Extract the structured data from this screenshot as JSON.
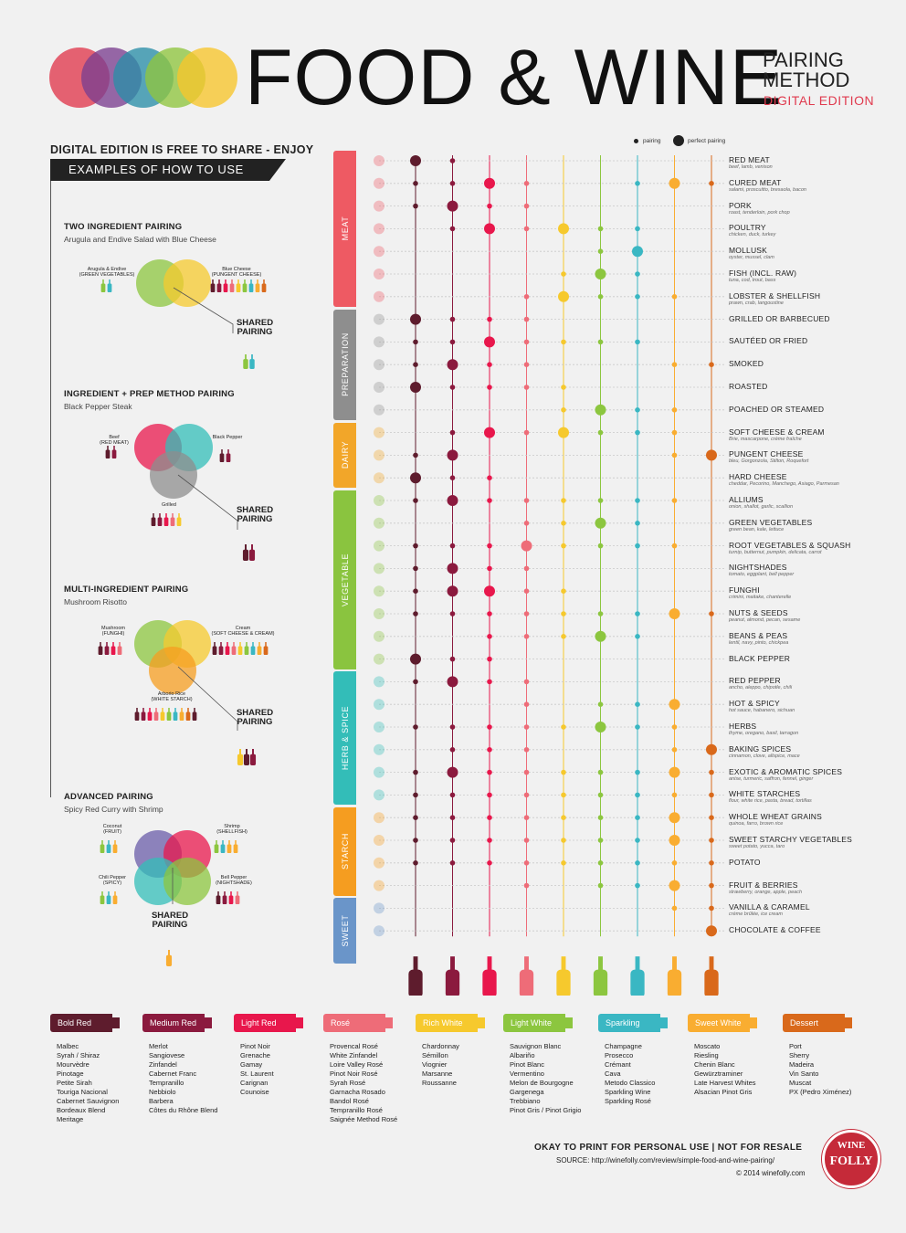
{
  "header": {
    "title": "FOOD & WINE",
    "subtitle_line1": "PAIRING",
    "subtitle_line2": "METHOD",
    "edition": "DIGITAL EDITION",
    "logo_colors": [
      "#e0394d",
      "#7b3f8f",
      "#2a8ea8",
      "#8fc53f",
      "#f7c52c"
    ]
  },
  "left_panel": {
    "free_note": "DIGITAL EDITION IS FREE TO SHARE - ENJOY",
    "examples_heading": "EXAMPLES OF HOW TO USE",
    "shared_line1": "SHARED",
    "shared_line2": "PAIRING",
    "examples": [
      {
        "title": "TWO INGREDIENT PAIRING",
        "subtitle": "Arugula and Endive Salad with Blue Cheese",
        "labels": [
          "Arugula & Endive",
          "(GREEN VEGETABLES)",
          "Blue Cheese",
          "(PUNGENT CHEESE)"
        ]
      },
      {
        "title": "INGREDIENT + PREP METHOD PAIRING",
        "subtitle": "Black Pepper Steak",
        "labels": [
          "Beef",
          "(RED MEAT)",
          "Black Pepper",
          "Grilled"
        ]
      },
      {
        "title": "MULTI-INGREDIENT PAIRING",
        "subtitle": "Mushroom Risotto",
        "labels": [
          "Mushroom",
          "(FUNGHI)",
          "Cream",
          "(SOFT CHEESE & CREAM)",
          "Arborio Rice",
          "(WHITE STARCH)"
        ]
      },
      {
        "title": "ADVANCED PAIRING",
        "subtitle": "Spicy Red Curry with Shrimp",
        "labels": [
          "Coconut",
          "(FRUIT)",
          "Shrimp",
          "(SHELLFISH)",
          "Chili Pepper",
          "(SPICY)",
          "Bell Pepper",
          "(NIGHTSHADE)"
        ]
      }
    ]
  },
  "legend": {
    "pairing": "pairing",
    "perfect": "perfect pairing"
  },
  "chart_data": {
    "type": "table",
    "title": "FOOD & WINE PAIRING METHOD",
    "encoding": "1 = pairing (small dot), 2 = perfect pairing (large dot), 0 = none",
    "wine_columns": [
      {
        "name": "Bold Red",
        "color": "#5e1c2d"
      },
      {
        "name": "Medium Red",
        "color": "#8b1a3e"
      },
      {
        "name": "Light Red",
        "color": "#e8174c"
      },
      {
        "name": "Rosé",
        "color": "#ee6c78"
      },
      {
        "name": "Rich White",
        "color": "#f6c92d"
      },
      {
        "name": "Light White",
        "color": "#8cc63f"
      },
      {
        "name": "Sparkling",
        "color": "#3ab7c3"
      },
      {
        "name": "Sweet White",
        "color": "#f9ad31"
      },
      {
        "name": "Dessert",
        "color": "#d9691b"
      }
    ],
    "categories": [
      {
        "name": "MEAT",
        "color": "#ee5a63",
        "rows": [
          0,
          6
        ]
      },
      {
        "name": "PREPARATION",
        "color": "#8e8e8e",
        "rows": [
          7,
          11
        ]
      },
      {
        "name": "DAIRY",
        "color": "#f2a629",
        "rows": [
          12,
          14
        ]
      },
      {
        "name": "VEGETABLE",
        "color": "#8ac43f",
        "rows": [
          15,
          22
        ]
      },
      {
        "name": "HERB & SPICE",
        "color": "#33bdb8",
        "rows": [
          23,
          28
        ]
      },
      {
        "name": "STARCH",
        "color": "#f59d20",
        "rows": [
          29,
          32
        ]
      },
      {
        "name": "SWEET",
        "color": "#6a95c9",
        "rows": [
          33,
          35
        ]
      }
    ],
    "rows": [
      {
        "name": "RED MEAT",
        "sub": "beef, lamb, venison",
        "v": [
          2,
          1,
          0,
          0,
          0,
          0,
          0,
          0,
          0
        ]
      },
      {
        "name": "CURED MEAT",
        "sub": "salami, proscuitto, bresaola, bacon",
        "v": [
          1,
          1,
          2,
          1,
          0,
          0,
          1,
          2,
          1
        ]
      },
      {
        "name": "PORK",
        "sub": "roast, tenderloin, pork chop",
        "v": [
          1,
          2,
          1,
          1,
          0,
          0,
          0,
          0,
          0
        ]
      },
      {
        "name": "POULTRY",
        "sub": "chicken, duck, turkey",
        "v": [
          0,
          1,
          2,
          1,
          2,
          1,
          1,
          0,
          0
        ]
      },
      {
        "name": "MOLLUSK",
        "sub": "oyster, mussel, clam",
        "v": [
          0,
          0,
          0,
          0,
          0,
          1,
          2,
          0,
          0
        ]
      },
      {
        "name": "FISH (INCL. RAW)",
        "sub": "tuna, cod, trout, bass",
        "v": [
          0,
          0,
          0,
          0,
          1,
          2,
          1,
          0,
          0
        ]
      },
      {
        "name": "LOBSTER & SHELLFISH",
        "sub": "prawn, crab, langoustine",
        "v": [
          0,
          0,
          0,
          1,
          2,
          1,
          1,
          1,
          0
        ]
      },
      {
        "name": "GRILLED OR BARBECUED",
        "sub": "",
        "v": [
          2,
          1,
          1,
          1,
          0,
          0,
          0,
          0,
          0
        ]
      },
      {
        "name": "SAUTÉED OR FRIED",
        "sub": "",
        "v": [
          1,
          1,
          2,
          1,
          1,
          1,
          1,
          0,
          0
        ]
      },
      {
        "name": "SMOKED",
        "sub": "",
        "v": [
          1,
          2,
          1,
          1,
          0,
          0,
          0,
          1,
          1
        ]
      },
      {
        "name": "ROASTED",
        "sub": "",
        "v": [
          2,
          1,
          1,
          1,
          1,
          0,
          0,
          0,
          0
        ]
      },
      {
        "name": "POACHED OR STEAMED",
        "sub": "",
        "v": [
          0,
          0,
          0,
          0,
          1,
          2,
          1,
          1,
          0
        ]
      },
      {
        "name": "SOFT CHEESE & CREAM",
        "sub": "Brie, mascarpone, crème fraîche",
        "v": [
          0,
          1,
          2,
          1,
          2,
          1,
          1,
          1,
          0
        ]
      },
      {
        "name": "PUNGENT CHEESE",
        "sub": "bleu, Gorgonzola, Stilton, Roquefort",
        "v": [
          1,
          2,
          0,
          0,
          0,
          0,
          0,
          1,
          2
        ]
      },
      {
        "name": "HARD CHEESE",
        "sub": "cheddar, Pecorino, Manchego, Asiago, Parmesan",
        "v": [
          2,
          1,
          1,
          0,
          0,
          0,
          0,
          0,
          0
        ]
      },
      {
        "name": "ALLIUMS",
        "sub": "onion, shallot, garlic, scallion",
        "v": [
          1,
          2,
          1,
          1,
          1,
          1,
          1,
          1,
          0
        ]
      },
      {
        "name": "GREEN VEGETABLES",
        "sub": "green bean, kale, lettuce",
        "v": [
          0,
          0,
          0,
          1,
          1,
          2,
          1,
          0,
          0
        ]
      },
      {
        "name": "ROOT VEGETABLES & SQUASH",
        "sub": "turnip, butternut, pumpkin, delicata, carrot",
        "v": [
          1,
          1,
          1,
          2,
          1,
          1,
          1,
          1,
          0
        ]
      },
      {
        "name": "NIGHTSHADES",
        "sub": "tomato, eggplant, bell pepper",
        "v": [
          1,
          2,
          1,
          1,
          0,
          0,
          0,
          0,
          0
        ]
      },
      {
        "name": "FUNGHI",
        "sub": "crimini, maitake, chanterelle",
        "v": [
          1,
          2,
          2,
          1,
          1,
          0,
          0,
          0,
          0
        ]
      },
      {
        "name": "NUTS & SEEDS",
        "sub": "peanut, almond, pecan, sesame",
        "v": [
          1,
          1,
          1,
          1,
          1,
          1,
          1,
          2,
          1
        ]
      },
      {
        "name": "BEANS & PEAS",
        "sub": "lentil, navy, pinto, chickpea",
        "v": [
          0,
          0,
          1,
          1,
          1,
          2,
          1,
          0,
          0
        ]
      },
      {
        "name": "BLACK PEPPER",
        "sub": "",
        "v": [
          2,
          1,
          1,
          0,
          0,
          0,
          0,
          0,
          0
        ]
      },
      {
        "name": "RED PEPPER",
        "sub": "ancho, aleppo, chipotle, chili",
        "v": [
          1,
          2,
          1,
          1,
          0,
          0,
          0,
          0,
          0
        ]
      },
      {
        "name": "HOT & SPICY",
        "sub": "hot sauce, habanero, sichuan",
        "v": [
          0,
          0,
          0,
          1,
          0,
          1,
          1,
          2,
          0
        ]
      },
      {
        "name": "HERBS",
        "sub": "thyme, oregano, basil, tarragon",
        "v": [
          1,
          1,
          1,
          1,
          1,
          2,
          1,
          1,
          0
        ]
      },
      {
        "name": "BAKING SPICES",
        "sub": "cinnamon, clove, allspice, mace",
        "v": [
          0,
          1,
          1,
          1,
          0,
          0,
          0,
          1,
          2
        ]
      },
      {
        "name": "EXOTIC & AROMATIC SPICES",
        "sub": "anise, turmeric, saffron, fennel, ginger",
        "v": [
          1,
          2,
          1,
          1,
          1,
          1,
          1,
          2,
          1
        ]
      },
      {
        "name": "WHITE STARCHES",
        "sub": "flour, white rice, pasta, bread, tortillas",
        "v": [
          1,
          1,
          1,
          1,
          1,
          1,
          1,
          1,
          1
        ]
      },
      {
        "name": "WHOLE WHEAT GRAINS",
        "sub": "quinoa, farro, brown rice",
        "v": [
          1,
          1,
          1,
          1,
          1,
          1,
          1,
          2,
          1
        ]
      },
      {
        "name": "SWEET STARCHY VEGETABLES",
        "sub": "sweet potato, yucca, taro",
        "v": [
          1,
          1,
          1,
          1,
          1,
          1,
          1,
          2,
          1
        ]
      },
      {
        "name": "POTATO",
        "sub": "",
        "v": [
          1,
          1,
          1,
          1,
          1,
          1,
          1,
          1,
          1
        ]
      },
      {
        "name": "FRUIT & BERRIES",
        "sub": "strawberry, orange, apple, peach",
        "v": [
          0,
          0,
          0,
          1,
          0,
          1,
          1,
          2,
          1
        ]
      },
      {
        "name": "VANILLA & CARAMEL",
        "sub": "crème brûlée, ice cream",
        "v": [
          0,
          0,
          0,
          0,
          0,
          0,
          0,
          1,
          1
        ]
      },
      {
        "name": "CHOCOLATE & COFFEE",
        "sub": "",
        "v": [
          0,
          0,
          0,
          0,
          0,
          0,
          0,
          0,
          2
        ]
      }
    ]
  },
  "wine_types": [
    {
      "label": "Bold Red",
      "color": "#5e1c2d",
      "examples": [
        "Malbec",
        "Syrah / Shiraz",
        "Mourvèdre",
        "Pinotage",
        "Petite Sirah",
        "Touriga Nacional",
        "Cabernet Sauvignon",
        "Bordeaux Blend",
        "Meritage"
      ]
    },
    {
      "label": "Medium Red",
      "color": "#8b1a3e",
      "examples": [
        "Merlot",
        "Sangiovese",
        "Zinfandel",
        "Cabernet Franc",
        "Tempranillo",
        "Nebbiolo",
        "Barbera",
        "Côtes du Rhône Blend"
      ]
    },
    {
      "label": "Light Red",
      "color": "#e8174c",
      "examples": [
        "Pinot Noir",
        "Grenache",
        "Gamay",
        "St. Laurent",
        "Carignan",
        "Counoise"
      ]
    },
    {
      "label": "Rosé",
      "color": "#ee6c78",
      "examples": [
        "Provencal Rosé",
        "White Zinfandel",
        "Loire Valley Rosé",
        "Pinot Noir Rosé",
        "Syrah Rosé",
        "Garnacha Rosado",
        "Bandol Rosé",
        "Tempranillo Rosé",
        "Saignée Method Rosé"
      ]
    },
    {
      "label": "Rich White",
      "color": "#f6c92d",
      "examples": [
        "Chardonnay",
        "Sémillon",
        "Viognier",
        "Marsanne",
        "Roussanne"
      ]
    },
    {
      "label": "Light White",
      "color": "#8cc63f",
      "examples": [
        "Sauvignon Blanc",
        "Albariño",
        "Pinot Blanc",
        "Vermentino",
        "Melon de Bourgogne",
        "Gargenega",
        "Trebbiano",
        "Pinot Gris / Pinot Grigio"
      ]
    },
    {
      "label": "Sparkling",
      "color": "#3ab7c3",
      "examples": [
        "Champagne",
        "Prosecco",
        "Crémant",
        "Cava",
        "Metodo Classico",
        "Sparkling Wine",
        "Sparkling Rosé"
      ]
    },
    {
      "label": "Sweet White",
      "color": "#f9ad31",
      "examples": [
        "Moscato",
        "Riesling",
        "Chenin Blanc",
        "Gewürztraminer",
        "Late Harvest Whites",
        "Alsacian Pinot Gris"
      ]
    },
    {
      "label": "Dessert",
      "color": "#d9691b",
      "examples": [
        "Port",
        "Sherry",
        "Madeira",
        "Vin Santo",
        "Muscat",
        "PX (Pedro Ximénez)"
      ]
    }
  ],
  "footer": {
    "usage": "OKAY TO PRINT FOR PERSONAL USE | NOT FOR RESALE",
    "source": "SOURCE: http://winefolly.com/review/simple-food-and-wine-pairing/",
    "copyright": "© 2014 winefolly.com",
    "seal_top": "WINE",
    "seal_bottom": "FOLLY"
  }
}
